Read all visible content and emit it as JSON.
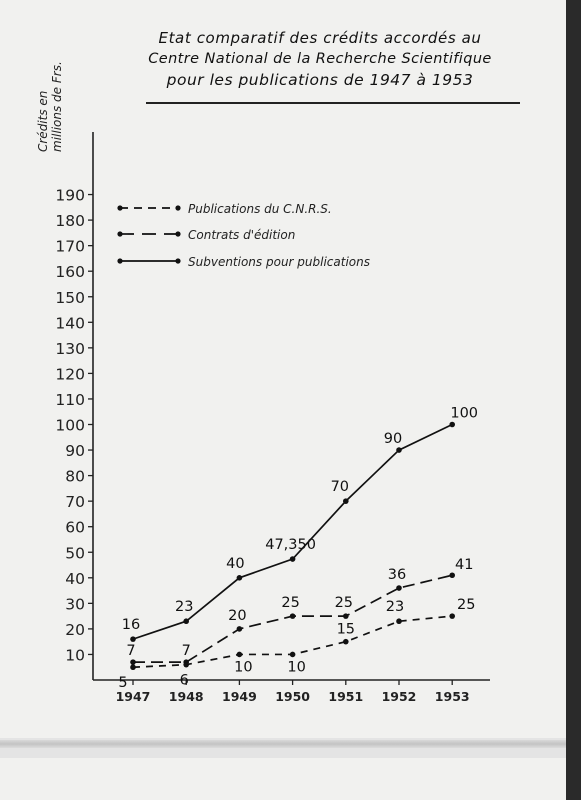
{
  "title_lines": [
    "Etat comparatif des crédits accordés au",
    "Centre National de la Recherche Scientifique",
    "pour les publications de 1947 à 1953"
  ],
  "chart_data": {
    "type": "line",
    "title": "Etat comparatif des crédits accordés au Centre National de la Recherche Scientifique pour les publications de 1947 à 1953",
    "ylabel_lines": [
      "Crédits en",
      "millions de Frs."
    ],
    "xlabel": "",
    "categories": [
      "1947",
      "1948",
      "1949",
      "1950",
      "1951",
      "1952",
      "1953"
    ],
    "y_ticks": [
      10,
      20,
      30,
      40,
      50,
      60,
      70,
      80,
      90,
      100,
      110,
      120,
      130,
      140,
      150,
      160,
      170,
      180,
      190
    ],
    "ylim": [
      0,
      190
    ],
    "grid": false,
    "legend_position": "top-left",
    "series": [
      {
        "name": "Subventions pour publications",
        "style": "solid",
        "values": [
          16,
          23,
          40,
          47.35,
          70,
          90,
          100
        ],
        "labels": [
          "16",
          "23",
          "40",
          "47,350",
          "70",
          "90",
          "100"
        ]
      },
      {
        "name": "Contrats d'édition",
        "style": "long-dash",
        "values": [
          7,
          7,
          20,
          25,
          25,
          36,
          41
        ],
        "labels": [
          "7",
          "7",
          "20",
          "25",
          "25",
          "36",
          "41"
        ]
      },
      {
        "name": "Publications du C.N.R.S.",
        "style": "short-dash",
        "values": [
          5,
          6,
          10,
          10,
          15,
          23,
          25
        ],
        "labels": [
          "5",
          "6",
          "10",
          "10",
          "15",
          "23",
          "25"
        ]
      }
    ],
    "legend_order": [
      "Publications du C.N.R.S.",
      "Contrats d'édition",
      "Subventions pour publications"
    ]
  }
}
